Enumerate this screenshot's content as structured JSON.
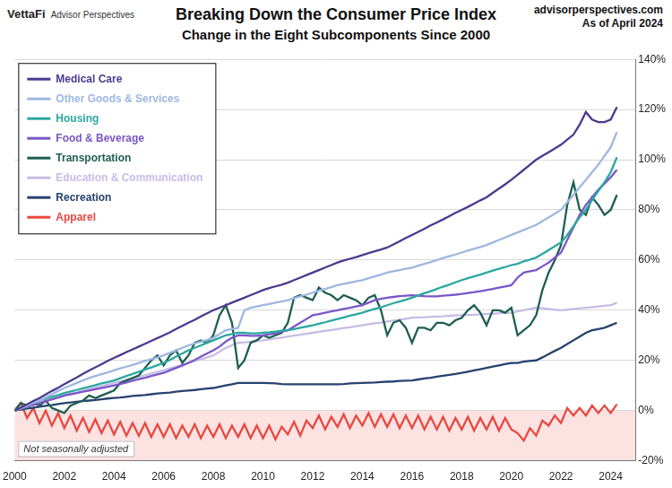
{
  "chart_data": {
    "type": "line",
    "title": "Breaking Down the Consumer Price Index",
    "subtitle": "Change in the Eight Subcomponents Since 2000",
    "brand": "VettaFi",
    "brand_subtitle": "Advisor Perspectives",
    "source": "advisorperspectives.com",
    "date_note": "As of April 2024",
    "annotations": [
      "Not seasonally adjusted"
    ],
    "legend": "upper left",
    "grid": "y",
    "xlim": [
      2000,
      2025
    ],
    "xticks": [
      2000,
      2002,
      2004,
      2006,
      2008,
      2010,
      2012,
      2014,
      2016,
      2018,
      2020,
      2022,
      2024
    ],
    "ylim": [
      -20,
      140
    ],
    "yticks": [
      {
        "value": -20,
        "label": "-20%"
      },
      {
        "value": 0,
        "label": "0%"
      },
      {
        "value": 20,
        "label": "20%"
      },
      {
        "value": 40,
        "label": "40%"
      },
      {
        "value": 60,
        "label": "60%"
      },
      {
        "value": 80,
        "label": "80%"
      },
      {
        "value": 100,
        "label": "100%"
      },
      {
        "value": 120,
        "label": "120%"
      },
      {
        "value": 140,
        "label": "140%"
      }
    ],
    "x": [
      2000,
      2000.25,
      2000.5,
      2000.75,
      2001,
      2001.25,
      2001.5,
      2001.75,
      2002,
      2002.25,
      2002.5,
      2002.75,
      2003,
      2003.25,
      2003.5,
      2003.75,
      2004,
      2004.25,
      2004.5,
      2004.75,
      2005,
      2005.25,
      2005.5,
      2005.75,
      2006,
      2006.25,
      2006.5,
      2006.75,
      2007,
      2007.25,
      2007.5,
      2007.75,
      2008,
      2008.25,
      2008.5,
      2008.75,
      2009,
      2009.25,
      2009.5,
      2009.75,
      2010,
      2010.25,
      2010.5,
      2010.75,
      2011,
      2011.25,
      2011.5,
      2011.75,
      2012,
      2012.25,
      2012.5,
      2012.75,
      2013,
      2013.25,
      2013.5,
      2013.75,
      2014,
      2014.25,
      2014.5,
      2014.75,
      2015,
      2015.25,
      2015.5,
      2015.75,
      2016,
      2016.25,
      2016.5,
      2016.75,
      2017,
      2017.25,
      2017.5,
      2017.75,
      2018,
      2018.25,
      2018.5,
      2018.75,
      2019,
      2019.25,
      2019.5,
      2019.75,
      2020,
      2020.25,
      2020.5,
      2020.75,
      2021,
      2021.25,
      2021.5,
      2021.75,
      2022,
      2022.25,
      2022.5,
      2022.75,
      2023,
      2023.25,
      2023.5,
      2023.75,
      2024,
      2024.25
    ],
    "series": [
      {
        "name": "Medical Care",
        "color": "#4b3a8f",
        "values": [
          0,
          1.2,
          2.5,
          3.8,
          5,
          6.4,
          7.8,
          9.1,
          10.5,
          11.9,
          13.2,
          14.6,
          16,
          17.2,
          18.5,
          19.8,
          21,
          22.1,
          23.3,
          24.4,
          25.5,
          26.6,
          27.8,
          28.9,
          30,
          31.2,
          32.5,
          33.8,
          35,
          36.2,
          37.5,
          38.8,
          40,
          41,
          42,
          43,
          44,
          45,
          46,
          47,
          48,
          48.8,
          49.5,
          50.2,
          51,
          52,
          53,
          54,
          55,
          56,
          57,
          58,
          59,
          59.8,
          60.5,
          61.2,
          62,
          62.8,
          63.5,
          64.2,
          65,
          66.2,
          67.5,
          68.8,
          70,
          71.2,
          72.5,
          73.8,
          75,
          76.2,
          77.5,
          78.8,
          80,
          81.2,
          82.5,
          83.8,
          85,
          86.8,
          88.5,
          90.2,
          92,
          94,
          96,
          98,
          100,
          101.5,
          103,
          104.5,
          106,
          108,
          110,
          114,
          119,
          116,
          115,
          115,
          116,
          121
        ]
      },
      {
        "name": "Other Goods & Services",
        "color": "#9db7e0",
        "values": [
          0,
          1,
          2,
          3,
          4,
          5.2,
          6.5,
          7.8,
          9,
          10,
          11,
          12,
          13,
          13.8,
          14.5,
          15.2,
          16,
          16.8,
          17.5,
          18.2,
          19,
          19.8,
          20.5,
          21.2,
          22,
          23,
          24,
          25,
          26,
          26.8,
          27.5,
          28.2,
          29,
          30.5,
          32,
          32.5,
          33,
          40,
          41,
          41.5,
          42,
          42.5,
          43,
          43.5,
          44,
          44.8,
          45.5,
          46.2,
          47,
          47.8,
          48.5,
          49.2,
          50,
          50.5,
          51,
          51.5,
          52,
          52.8,
          53.5,
          54.2,
          55,
          55.5,
          56,
          56.5,
          57,
          57.8,
          58.5,
          59.2,
          60,
          60.8,
          61.5,
          62.2,
          63,
          63.8,
          64.5,
          65.2,
          66,
          67,
          68,
          69,
          70,
          71,
          72,
          73,
          74,
          75.5,
          77,
          78.5,
          80,
          83,
          86,
          89,
          92,
          95,
          98,
          101.5,
          105,
          111
        ]
      },
      {
        "name": "Housing",
        "color": "#2aa8a1",
        "values": [
          0,
          1,
          2,
          3,
          4,
          4.8,
          5.5,
          6.2,
          7,
          7.6,
          8.2,
          8.9,
          9.5,
          10.1,
          10.8,
          11.4,
          12,
          12.9,
          13.8,
          14.6,
          15.5,
          16.4,
          17.2,
          18.1,
          19,
          20.2,
          21.5,
          22.8,
          24,
          25,
          26,
          27,
          28,
          29,
          30,
          30.5,
          31,
          31,
          30.8,
          30.8,
          31,
          31.2,
          31.5,
          31.8,
          32,
          32.5,
          33,
          33.5,
          34,
          34.6,
          35.2,
          35.9,
          36.5,
          37.1,
          37.8,
          38.4,
          39,
          39.8,
          40.5,
          41.2,
          42,
          42.8,
          43.5,
          44.2,
          45,
          45.9,
          46.8,
          47.6,
          48.5,
          49.4,
          50.2,
          51.1,
          52,
          52.8,
          53.5,
          54.2,
          55,
          55.8,
          56.5,
          57.2,
          58,
          58.5,
          59.5,
          60.2,
          61,
          62.5,
          64,
          65.5,
          67,
          70,
          73.5,
          77,
          80,
          84,
          87.5,
          91,
          95,
          101
        ]
      },
      {
        "name": "Food & Beverage",
        "color": "#7b56c8",
        "values": [
          0,
          0.8,
          1.5,
          2.2,
          3,
          3.8,
          4.5,
          5.2,
          6,
          6.5,
          7,
          7.5,
          8,
          8.5,
          9,
          9.5,
          10,
          10.6,
          11.2,
          11.9,
          12.5,
          13.1,
          13.8,
          14.4,
          15,
          16,
          17,
          18,
          19,
          20.2,
          21.5,
          22.8,
          24,
          25.5,
          27.5,
          29,
          30,
          30,
          29.8,
          29.8,
          30,
          30.4,
          30.8,
          31.4,
          32,
          33.5,
          35,
          36.5,
          38,
          38.5,
          39,
          39.5,
          40,
          40.5,
          41,
          41.5,
          42,
          43,
          44,
          44.5,
          45,
          45.3,
          45.6,
          45.8,
          46,
          45.8,
          45.6,
          45.5,
          45.5,
          45.8,
          46,
          46.2,
          46.5,
          46.9,
          47.2,
          47.6,
          48,
          48.5,
          49,
          49.5,
          50,
          53,
          55,
          55.5,
          56,
          57.5,
          59,
          61,
          63,
          68,
          73,
          78,
          82,
          85,
          88,
          90.5,
          93,
          96
        ]
      },
      {
        "name": "Transportation",
        "color": "#1d5e50",
        "values": [
          0,
          3,
          2,
          3,
          2,
          4,
          1,
          0,
          -1,
          2,
          3,
          4,
          6,
          5,
          6,
          7,
          8,
          11,
          12,
          13,
          14,
          17,
          20,
          22,
          18,
          22,
          24,
          19,
          22,
          27,
          28,
          27,
          30,
          38,
          42,
          35,
          17,
          20,
          27,
          28,
          30,
          29,
          30,
          31,
          35,
          45,
          46,
          45,
          44,
          49,
          47,
          46,
          44,
          46,
          45,
          44,
          42,
          45,
          46,
          40,
          30,
          35,
          36,
          33,
          27,
          33,
          33,
          32,
          35,
          35,
          34,
          36,
          37,
          40,
          42,
          39,
          34,
          40,
          40,
          39,
          41,
          30,
          32,
          34,
          38,
          48,
          55,
          60,
          66,
          82,
          91,
          80,
          78,
          85,
          82,
          78,
          80,
          86
        ]
      },
      {
        "name": "Education & Communication",
        "color": "#c7bce6",
        "values": [
          0,
          0.8,
          1.5,
          2.2,
          3,
          3.8,
          4.5,
          5.2,
          6,
          6.6,
          7.2,
          7.9,
          8.5,
          9.1,
          9.8,
          10.4,
          11,
          11.6,
          12.2,
          12.9,
          13.5,
          14.1,
          14.8,
          15.4,
          16,
          16.8,
          17.5,
          18.2,
          19,
          19.8,
          20.5,
          21.2,
          22,
          23.5,
          25,
          26,
          27,
          27.2,
          27.5,
          27.8,
          28,
          28.4,
          28.8,
          29.1,
          29.5,
          29.9,
          30.2,
          30.6,
          31,
          31.4,
          31.8,
          32.1,
          32.5,
          32.9,
          33.2,
          33.6,
          34,
          34.4,
          34.8,
          35.1,
          35.5,
          35.9,
          36.2,
          36.6,
          37,
          37.1,
          37.2,
          37.4,
          37.5,
          37.6,
          37.8,
          37.9,
          38,
          38.1,
          38.2,
          38.4,
          38.5,
          38.6,
          38.8,
          38.9,
          39,
          39.5,
          40,
          40.5,
          41,
          40.8,
          40.5,
          40.2,
          40,
          40.2,
          40.5,
          40.8,
          41,
          41.2,
          41.5,
          41.8,
          42,
          43
        ]
      },
      {
        "name": "Recreation",
        "color": "#26426e",
        "values": [
          0,
          0.4,
          0.8,
          1.1,
          1.5,
          1.9,
          2.2,
          2.6,
          3,
          3.2,
          3.5,
          3.8,
          4,
          4.2,
          4.5,
          4.8,
          5,
          5.2,
          5.5,
          5.8,
          6,
          6.2,
          6.5,
          6.8,
          7,
          7.2,
          7.5,
          7.8,
          8,
          8.2,
          8.5,
          8.8,
          9,
          9.5,
          10,
          10.5,
          11,
          11,
          11,
          11,
          11,
          10.9,
          10.8,
          10.6,
          10.5,
          10.5,
          10.5,
          10.5,
          10.5,
          10.5,
          10.5,
          10.5,
          10.5,
          10.6,
          10.8,
          10.9,
          11,
          11.1,
          11.2,
          11.4,
          11.5,
          11.6,
          11.8,
          11.9,
          12,
          12.4,
          12.8,
          13.1,
          13.5,
          13.9,
          14.2,
          14.6,
          15,
          15.5,
          16,
          16.5,
          17,
          17.5,
          18,
          18.5,
          19,
          19,
          19.5,
          19.8,
          20,
          21.2,
          22.5,
          23.8,
          25,
          26.5,
          28,
          29.5,
          31,
          32,
          32.5,
          33,
          34,
          35
        ]
      },
      {
        "name": "Apparel",
        "color": "#e8473f",
        "values": [
          0,
          3,
          -3,
          1,
          -5,
          0,
          -6,
          -1,
          -7,
          -2,
          -8,
          -3,
          -8.5,
          -3.5,
          -9,
          -4,
          -9.5,
          -4.5,
          -10,
          -5,
          -10,
          -5,
          -10.5,
          -5.5,
          -10.5,
          -5.5,
          -11,
          -6,
          -10.5,
          -5.5,
          -11,
          -6,
          -10.5,
          -5.5,
          -11,
          -6,
          -10.5,
          -5.5,
          -11,
          -6,
          -11,
          -6,
          -11.5,
          -6.5,
          -9.5,
          -4.5,
          -10,
          -4,
          -7,
          -2,
          -7.5,
          -2.5,
          -6.5,
          -1.5,
          -7,
          -2,
          -6,
          -1,
          -6.5,
          -1.5,
          -6.5,
          -1.5,
          -7,
          -2,
          -7,
          -2,
          -7.5,
          -2.5,
          -7.5,
          -2.5,
          -8,
          -3,
          -7.5,
          -2.5,
          -8,
          -3,
          -7.5,
          -2.5,
          -8,
          -3,
          -7.5,
          -9,
          -12,
          -7,
          -10,
          -4,
          -6,
          -2,
          -5,
          1,
          -2,
          1,
          -2,
          2,
          -1,
          2,
          -1,
          2.5
        ]
      }
    ]
  }
}
